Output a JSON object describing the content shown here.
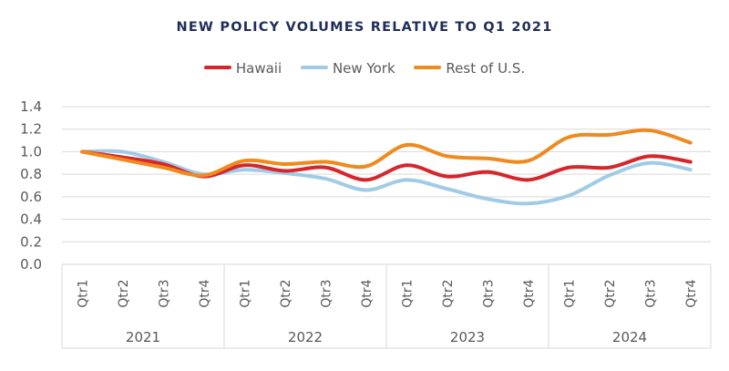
{
  "colors": {
    "title": "#1f2d5a",
    "grid": "#d9d9d9",
    "axis_text": "#595959"
  },
  "chart_data": {
    "type": "line",
    "title": "NEW POLICY VOLUMES RELATIVE TO Q1 2021",
    "xlabel": "",
    "ylabel": "",
    "ylim": [
      0,
      1.4
    ],
    "yticks": [
      "0.0",
      "0.2",
      "0.4",
      "0.6",
      "0.8",
      "1.0",
      "1.2",
      "1.4"
    ],
    "grid": true,
    "legend_position": "top",
    "categories": [
      "Qtr1",
      "Qtr2",
      "Qtr3",
      "Qtr4",
      "Qtr1",
      "Qtr2",
      "Qtr3",
      "Qtr4",
      "Qtr1",
      "Qtr2",
      "Qtr3",
      "Qtr4",
      "Qtr1",
      "Qtr2",
      "Qtr3",
      "Qtr4"
    ],
    "years": [
      "2021",
      "2022",
      "2023",
      "2024"
    ],
    "series": [
      {
        "name": "Hawaii",
        "color": "#d7262b",
        "values": [
          1.0,
          0.95,
          0.89,
          0.78,
          0.88,
          0.83,
          0.86,
          0.75,
          0.88,
          0.78,
          0.82,
          0.75,
          0.86,
          0.86,
          0.96,
          0.91
        ]
      },
      {
        "name": "New York",
        "color": "#a0cbe6",
        "values": [
          1.0,
          1.0,
          0.91,
          0.8,
          0.84,
          0.81,
          0.76,
          0.66,
          0.75,
          0.67,
          0.58,
          0.54,
          0.61,
          0.79,
          0.9,
          0.84
        ]
      },
      {
        "name": "Rest of U.S.",
        "color": "#ee8a1e",
        "values": [
          1.0,
          0.93,
          0.86,
          0.79,
          0.92,
          0.89,
          0.91,
          0.87,
          1.06,
          0.96,
          0.94,
          0.92,
          1.13,
          1.15,
          1.19,
          1.08
        ]
      }
    ]
  }
}
